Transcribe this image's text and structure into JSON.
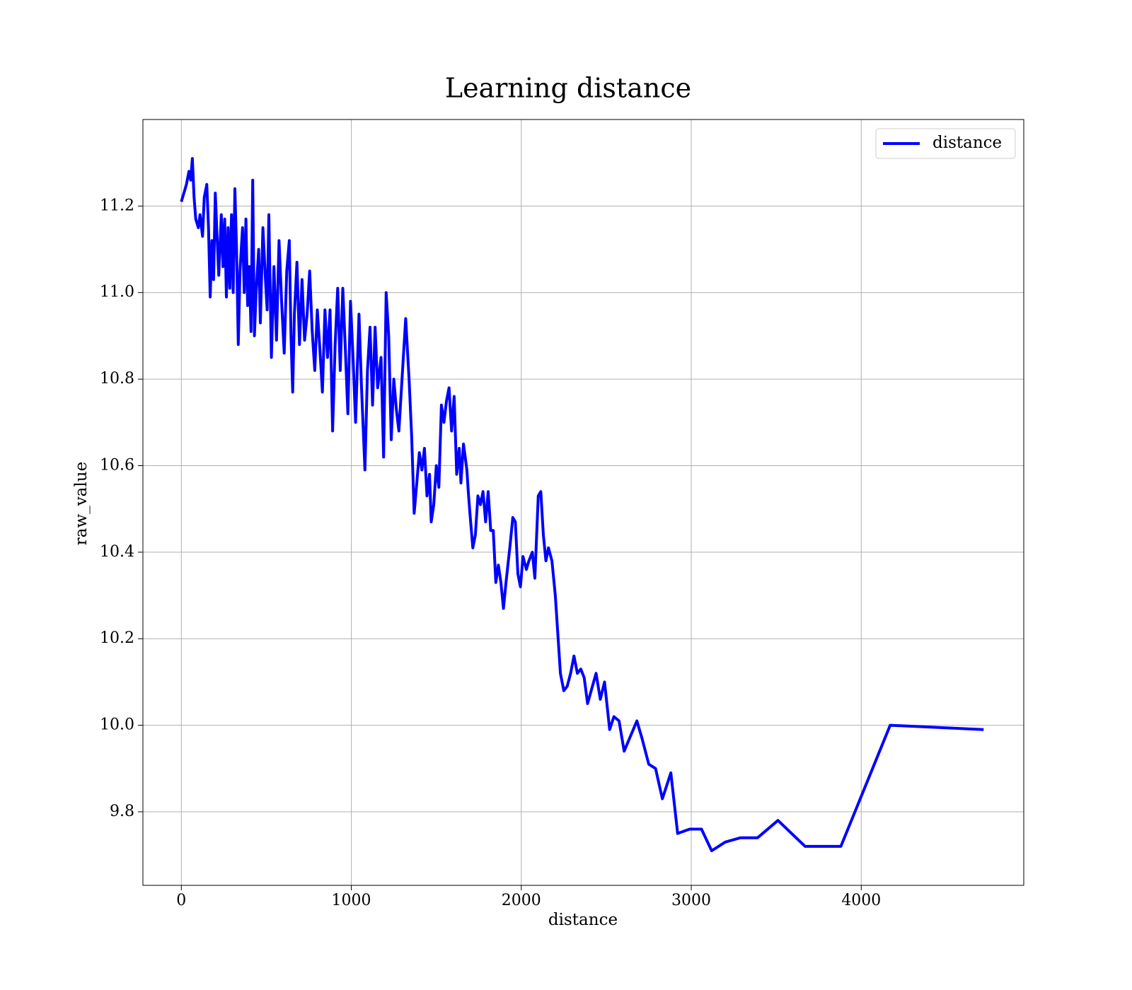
{
  "chart_data": {
    "type": "line",
    "title": "Learning distance",
    "xlabel": "distance",
    "ylabel": "raw_value",
    "x": [
      0,
      30,
      45,
      55,
      65,
      75,
      85,
      100,
      110,
      125,
      135,
      150,
      160,
      170,
      180,
      190,
      200,
      210,
      220,
      235,
      245,
      255,
      265,
      275,
      285,
      295,
      305,
      315,
      325,
      335,
      345,
      360,
      370,
      380,
      390,
      400,
      410,
      420,
      430,
      440,
      455,
      465,
      480,
      495,
      505,
      515,
      530,
      545,
      560,
      575,
      590,
      605,
      620,
      635,
      645,
      655,
      665,
      680,
      695,
      710,
      725,
      740,
      755,
      770,
      785,
      800,
      815,
      830,
      845,
      860,
      875,
      890,
      905,
      920,
      935,
      950,
      965,
      980,
      995,
      1010,
      1025,
      1045,
      1060,
      1080,
      1095,
      1110,
      1125,
      1140,
      1155,
      1175,
      1190,
      1205,
      1220,
      1235,
      1250,
      1265,
      1280,
      1300,
      1320,
      1340,
      1355,
      1370,
      1385,
      1400,
      1415,
      1430,
      1445,
      1460,
      1470,
      1485,
      1500,
      1515,
      1530,
      1545,
      1560,
      1575,
      1590,
      1605,
      1620,
      1635,
      1645,
      1660,
      1680,
      1690,
      1700,
      1715,
      1730,
      1745,
      1760,
      1775,
      1790,
      1805,
      1820,
      1835,
      1850,
      1865,
      1880,
      1895,
      1910,
      1935,
      1950,
      1965,
      1980,
      1995,
      2010,
      2030,
      2045,
      2065,
      2080,
      2100,
      2115,
      2130,
      2145,
      2160,
      2180,
      2200,
      2230,
      2250,
      2270,
      2290,
      2310,
      2330,
      2350,
      2370,
      2390,
      2440,
      2465,
      2490,
      2520,
      2545,
      2575,
      2605,
      2680,
      2710,
      2750,
      2790,
      2830,
      2880,
      2920,
      2990,
      3060,
      3120,
      3200,
      3290,
      3390,
      3510,
      3670,
      3880,
      4170,
      4720
    ],
    "series": [
      {
        "name": "distance",
        "color": "#0000ff",
        "values": [
          11.21,
          11.25,
          11.28,
          11.26,
          11.31,
          11.22,
          11.17,
          11.15,
          11.18,
          11.13,
          11.22,
          11.25,
          11.15,
          10.99,
          11.12,
          11.03,
          11.23,
          11.13,
          11.04,
          11.18,
          11.06,
          11.17,
          10.99,
          11.15,
          11.01,
          11.18,
          11.0,
          11.24,
          11.1,
          10.88,
          11.05,
          11.15,
          11.0,
          11.17,
          10.97,
          11.06,
          10.91,
          11.26,
          10.9,
          11.0,
          11.1,
          10.93,
          11.15,
          11.03,
          10.96,
          11.18,
          10.85,
          11.06,
          10.89,
          11.12,
          10.98,
          10.86,
          11.05,
          11.12,
          10.9,
          10.77,
          10.95,
          11.07,
          10.88,
          11.03,
          10.89,
          10.95,
          11.05,
          10.91,
          10.82,
          10.96,
          10.87,
          10.77,
          10.96,
          10.85,
          10.96,
          10.68,
          10.88,
          11.01,
          10.82,
          11.01,
          10.87,
          10.72,
          10.98,
          10.85,
          10.7,
          10.95,
          10.78,
          10.59,
          10.82,
          10.92,
          10.74,
          10.92,
          10.78,
          10.85,
          10.62,
          11.0,
          10.9,
          10.66,
          10.8,
          10.73,
          10.68,
          10.81,
          10.94,
          10.8,
          10.67,
          10.49,
          10.56,
          10.63,
          10.59,
          10.64,
          10.53,
          10.58,
          10.47,
          10.51,
          10.6,
          10.55,
          10.74,
          10.7,
          10.75,
          10.78,
          10.68,
          10.76,
          10.58,
          10.64,
          10.56,
          10.65,
          10.59,
          10.53,
          10.48,
          10.41,
          10.44,
          10.53,
          10.51,
          10.54,
          10.47,
          10.54,
          10.45,
          10.45,
          10.33,
          10.37,
          10.33,
          10.27,
          10.33,
          10.42,
          10.48,
          10.47,
          10.35,
          10.32,
          10.39,
          10.36,
          10.38,
          10.4,
          10.34,
          10.53,
          10.54,
          10.44,
          10.38,
          10.41,
          10.38,
          10.3,
          10.12,
          10.08,
          10.09,
          10.12,
          10.16,
          10.12,
          10.13,
          10.11,
          10.05,
          10.12,
          10.06,
          10.1,
          9.99,
          10.02,
          10.01,
          9.94,
          10.01,
          9.97,
          9.91,
          9.9,
          9.83,
          9.89,
          9.75,
          9.76,
          9.76,
          9.71,
          9.73,
          9.74,
          9.74,
          9.78,
          9.72,
          9.72,
          10.0,
          9.99
        ]
      }
    ],
    "xlim": [
      -226,
      4956
    ],
    "xticks": [
      0,
      1000,
      2000,
      3000,
      4000
    ],
    "ylim": [
      9.63,
      11.4
    ],
    "yticks": [
      9.8,
      {
        "value": 10,
        "label": "10.0"
      },
      10.2,
      10.4,
      10.6,
      10.8,
      {
        "value": 11,
        "label": "11.0"
      },
      11.2
    ],
    "grid": true,
    "legend": "upper right"
  }
}
